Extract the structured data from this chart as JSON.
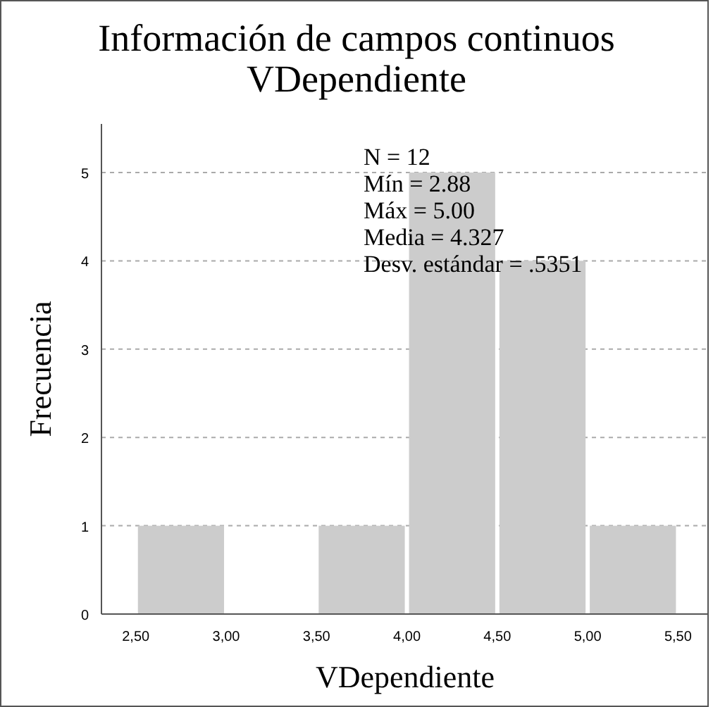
{
  "chart_data": {
    "type": "histogram",
    "title": "Información de campos continuos\nVDependiente",
    "xlabel": "VDependiente",
    "ylabel": "Frecuencia",
    "bins": [
      2.5,
      3.0,
      3.5,
      4.0,
      4.5,
      5.0,
      5.5
    ],
    "values": [
      1,
      0,
      1,
      5,
      4,
      1
    ],
    "color": "#cccccc",
    "xlim": [
      2.31,
      5.67
    ],
    "xticks": [
      {
        "value": 2.5,
        "label": "2,50"
      },
      {
        "value": 3.0,
        "label": "3,00"
      },
      {
        "value": 3.5,
        "label": "3,50"
      },
      {
        "value": 4.0,
        "label": "4,00"
      },
      {
        "value": 4.5,
        "label": "4,50"
      },
      {
        "value": 5.0,
        "label": "5,00"
      },
      {
        "value": 5.5,
        "label": "5,50"
      }
    ],
    "ylim": [
      0,
      5.55
    ],
    "yticks": [
      0,
      1,
      2,
      3,
      4,
      5
    ],
    "grid": "y",
    "annotations": [
      "N = 12",
      "Mín = 2.88",
      "Máx = 5.00",
      "Media = 4.327",
      "Desv. estándar = .5351"
    ]
  }
}
